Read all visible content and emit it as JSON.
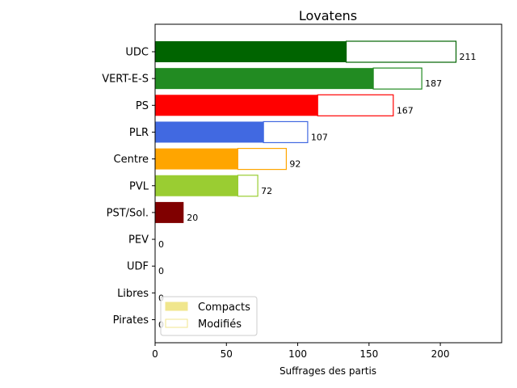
{
  "chart_data": {
    "type": "bar",
    "orientation": "horizontal",
    "stacked": true,
    "title": "Lovatens",
    "xlabel": "Suffrages des partis",
    "ylabel": "",
    "xlim": [
      0,
      243
    ],
    "xticks": [
      0,
      50,
      100,
      150,
      200
    ],
    "categories": [
      "UDC",
      "VERT-E-S",
      "PS",
      "PLR",
      "Centre",
      "PVL",
      "PST/Sol.",
      "PEV",
      "UDF",
      "Libres",
      "Pirates"
    ],
    "colors": [
      "#006400",
      "#228B22",
      "#FF0000",
      "#4169E1",
      "#FFA500",
      "#9ACD32",
      "#800000",
      "#FFD700",
      "#4B0082",
      "#87CEEB",
      "#8B008B"
    ],
    "series": [
      {
        "name": "Compacts",
        "values": [
          134,
          153,
          114,
          76,
          58,
          58,
          20,
          0,
          0,
          0,
          0
        ]
      },
      {
        "name": "Modifiés",
        "values": [
          77,
          34,
          53,
          31,
          34,
          14,
          0,
          0,
          0,
          0,
          0
        ]
      }
    ],
    "data_labels": [
      211,
      187,
      167,
      107,
      92,
      72,
      20,
      0,
      0,
      0,
      0
    ],
    "legend": {
      "position": "lower-left",
      "items": [
        {
          "label": "Compacts",
          "fill": "#F0E68C",
          "stroke": "#F0E68C"
        },
        {
          "label": "Modifiés",
          "fill": "#ffffff",
          "stroke": "#F0E68C"
        }
      ]
    },
    "grid": false
  }
}
